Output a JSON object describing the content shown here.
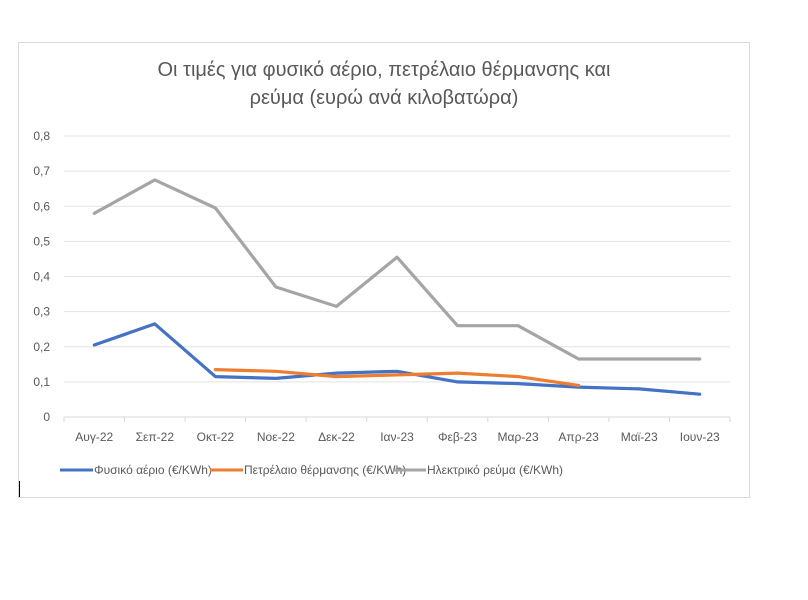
{
  "chart_data": {
    "type": "line",
    "title_lines": [
      "Οι τιμές για φυσικό αέριο, πετρέλαιο θέρμανσης και",
      "ρεύμα (ευρώ ανά κιλοβατώρα)"
    ],
    "xlabel": "",
    "ylabel": "",
    "categories": [
      "Αυγ-22",
      "Σεπ-22",
      "Οκτ-22",
      "Νοε-22",
      "Δεκ-22",
      "Ιαν-23",
      "Φεβ-23",
      "Μαρ-23",
      "Απρ-23",
      "Μαϊ-23",
      "Ιουν-23"
    ],
    "ylim": [
      0,
      0.8
    ],
    "yticks": [
      "0",
      "0,1",
      "0,2",
      "0,3",
      "0,4",
      "0,5",
      "0,6",
      "0,7",
      "0,8"
    ],
    "grid": true,
    "legend_position": "bottom",
    "series": [
      {
        "name": "Φυσικό αέριο (€/KWh)",
        "color": "#4472c4",
        "values": [
          0.205,
          0.265,
          0.115,
          0.11,
          0.125,
          0.13,
          0.1,
          0.095,
          0.085,
          0.08,
          0.065
        ]
      },
      {
        "name": "Πετρέλαιο θέρμανσης (€/KWh)",
        "color": "#ed7d31",
        "values": [
          null,
          null,
          0.135,
          0.13,
          0.115,
          0.12,
          0.125,
          0.115,
          0.09,
          null,
          null
        ]
      },
      {
        "name": "Ηλεκτρικό ρεύμα (€/KWh)",
        "color": "#a5a5a5",
        "values": [
          0.58,
          0.675,
          0.595,
          0.37,
          0.315,
          0.455,
          0.26,
          0.26,
          0.165,
          0.165,
          0.165
        ]
      }
    ]
  }
}
